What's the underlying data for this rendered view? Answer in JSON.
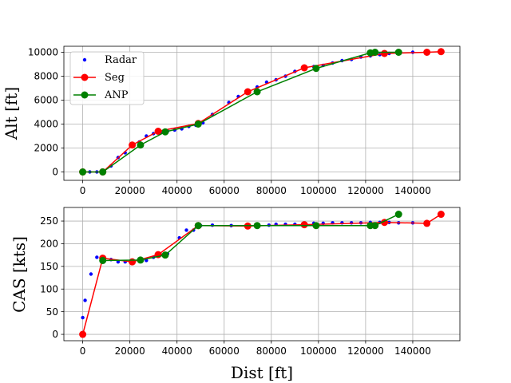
{
  "chart_data": [
    {
      "type": "line",
      "id": "altitude",
      "title": "",
      "xlabel": "",
      "ylabel": "Alt [ft]",
      "xlim": [
        -8000,
        160000
      ],
      "ylim": [
        -700,
        10500
      ],
      "xticks": [
        0,
        20000,
        40000,
        60000,
        80000,
        100000,
        120000,
        140000
      ],
      "xtick_labels": [
        "0",
        "20000",
        "40000",
        "60000",
        "80000",
        "100000",
        "120000",
        "140000"
      ],
      "yticks": [
        0,
        2000,
        4000,
        6000,
        8000,
        10000
      ],
      "ytick_labels": [
        "0",
        "2000",
        "4000",
        "6000",
        "8000",
        "10000"
      ],
      "grid": true,
      "legend": "upper-left",
      "series": [
        {
          "name": "Radar",
          "style": "points",
          "color": "#0000ff",
          "x": [
            0,
            3000,
            6000,
            9000,
            12000,
            15000,
            18000,
            21000,
            24000,
            27000,
            30000,
            33000,
            36000,
            39000,
            42000,
            45000,
            48000,
            51000,
            55000,
            62000,
            66000,
            70000,
            74000,
            78000,
            82000,
            86000,
            90000,
            94000,
            98000,
            102000,
            106000,
            110000,
            114000,
            118000,
            122000,
            126000,
            130000,
            134000,
            140000
          ],
          "y": [
            0,
            0,
            0,
            100,
            500,
            1200,
            1600,
            2200,
            2500,
            3000,
            3200,
            3300,
            3400,
            3500,
            3600,
            3800,
            3900,
            4100,
            4800,
            5800,
            6300,
            6800,
            7100,
            7500,
            7700,
            8000,
            8400,
            8700,
            8800,
            8900,
            9100,
            9300,
            9400,
            9600,
            9700,
            9800,
            9900,
            10000,
            10000
          ]
        },
        {
          "name": "Seg",
          "style": "line-markers",
          "color": "#ff0000",
          "x": [
            0,
            8500,
            21000,
            32000,
            49000,
            70000,
            94000,
            128000,
            146000,
            152000
          ],
          "y": [
            0,
            0,
            2250,
            3400,
            4050,
            6700,
            8700,
            9900,
            10000,
            10050
          ]
        },
        {
          "name": "ANP",
          "style": "line-markers",
          "color": "#008000",
          "x": [
            0,
            8500,
            24500,
            35000,
            49000,
            74000,
            99000,
            122000,
            124000,
            134000
          ],
          "y": [
            0,
            0,
            2250,
            3350,
            4000,
            6700,
            8650,
            9950,
            10000,
            10000
          ]
        }
      ]
    },
    {
      "type": "line",
      "id": "cas",
      "title": "",
      "xlabel": "Dist [ft]",
      "ylabel": "CAS [kts]",
      "xlim": [
        -8000,
        160000
      ],
      "ylim": [
        -14,
        280
      ],
      "xticks": [
        0,
        20000,
        40000,
        60000,
        80000,
        100000,
        120000,
        140000
      ],
      "xtick_labels": [
        "0",
        "20000",
        "40000",
        "60000",
        "80000",
        "100000",
        "120000",
        "140000"
      ],
      "yticks": [
        0,
        50,
        100,
        150,
        200,
        250
      ],
      "ytick_labels": [
        "0",
        "50",
        "100",
        "150",
        "200",
        "250"
      ],
      "grid": true,
      "legend": "none",
      "series": [
        {
          "name": "Radar",
          "style": "points",
          "color": "#0000ff",
          "x": [
            0,
            1000,
            3500,
            6000,
            9000,
            12000,
            15000,
            18000,
            21000,
            24000,
            27000,
            30000,
            33000,
            36000,
            41000,
            44000,
            47000,
            50000,
            55000,
            63000,
            70000,
            74000,
            79000,
            82000,
            86000,
            90000,
            94000,
            98000,
            102000,
            106000,
            110000,
            114000,
            118000,
            122000,
            126000,
            130000,
            134000,
            140000
          ],
          "y": [
            37,
            75,
            133,
            170,
            169,
            165,
            160,
            160,
            162,
            165,
            163,
            170,
            176,
            178,
            213,
            230,
            230,
            240,
            241,
            240,
            240,
            241,
            241,
            243,
            243,
            243,
            245,
            245,
            245,
            246,
            246,
            246,
            246,
            247,
            247,
            247,
            246,
            246
          ]
        },
        {
          "name": "Seg",
          "style": "line-markers",
          "color": "#ff0000",
          "x": [
            0,
            8500,
            21000,
            32000,
            49000,
            70000,
            94000,
            128000,
            146000,
            152000
          ],
          "y": [
            0,
            168,
            160,
            176,
            240,
            239,
            242,
            247,
            245,
            265
          ]
        },
        {
          "name": "ANP",
          "style": "line-markers",
          "color": "#008000",
          "x": [
            8500,
            24500,
            35000,
            49000,
            74000,
            99000,
            122000,
            124000,
            134000
          ],
          "y": [
            163,
            164,
            175,
            240,
            240,
            240,
            240,
            240,
            265
          ]
        }
      ]
    }
  ]
}
